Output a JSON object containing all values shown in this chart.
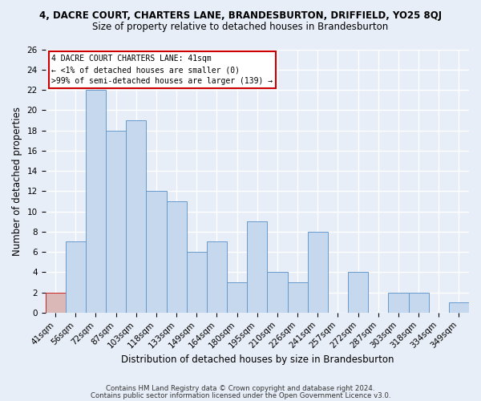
{
  "title": "4, DACRE COURT, CHARTERS LANE, BRANDESBURTON, DRIFFIELD, YO25 8QJ",
  "subtitle": "Size of property relative to detached houses in Brandesburton",
  "xlabel": "Distribution of detached houses by size in Brandesburton",
  "ylabel": "Number of detached properties",
  "categories": [
    "41sqm",
    "56sqm",
    "72sqm",
    "87sqm",
    "103sqm",
    "118sqm",
    "133sqm",
    "149sqm",
    "164sqm",
    "180sqm",
    "195sqm",
    "210sqm",
    "226sqm",
    "241sqm",
    "257sqm",
    "272sqm",
    "287sqm",
    "303sqm",
    "318sqm",
    "334sqm",
    "349sqm"
  ],
  "values": [
    2,
    7,
    22,
    18,
    19,
    12,
    11,
    6,
    7,
    3,
    9,
    4,
    3,
    8,
    0,
    4,
    0,
    2,
    2,
    0,
    1
  ],
  "highlight_index": 0,
  "highlight_color": "#dbb8b8",
  "bar_color": "#c5d8ed",
  "bar_edge_color": "#6699cc",
  "highlight_edge_color": "#cc2222",
  "ylim": [
    0,
    26
  ],
  "yticks": [
    0,
    2,
    4,
    6,
    8,
    10,
    12,
    14,
    16,
    18,
    20,
    22,
    24,
    26
  ],
  "annotation_line1": "4 DACRE COURT CHARTERS LANE: 41sqm",
  "annotation_line2": "← <1% of detached houses are smaller (0)",
  "annotation_line3": ">99% of semi-detached houses are larger (139) →",
  "annotation_box_color": "#ffffff",
  "annotation_box_edge": "#cc0000",
  "footer1": "Contains HM Land Registry data © Crown copyright and database right 2024.",
  "footer2": "Contains public sector information licensed under the Open Government Licence v3.0.",
  "background_color": "#e8eef8",
  "grid_color": "#ffffff",
  "title_fontsize": 8.5,
  "subtitle_fontsize": 8.5,
  "axis_label_fontsize": 8.5,
  "tick_fontsize": 7.5
}
